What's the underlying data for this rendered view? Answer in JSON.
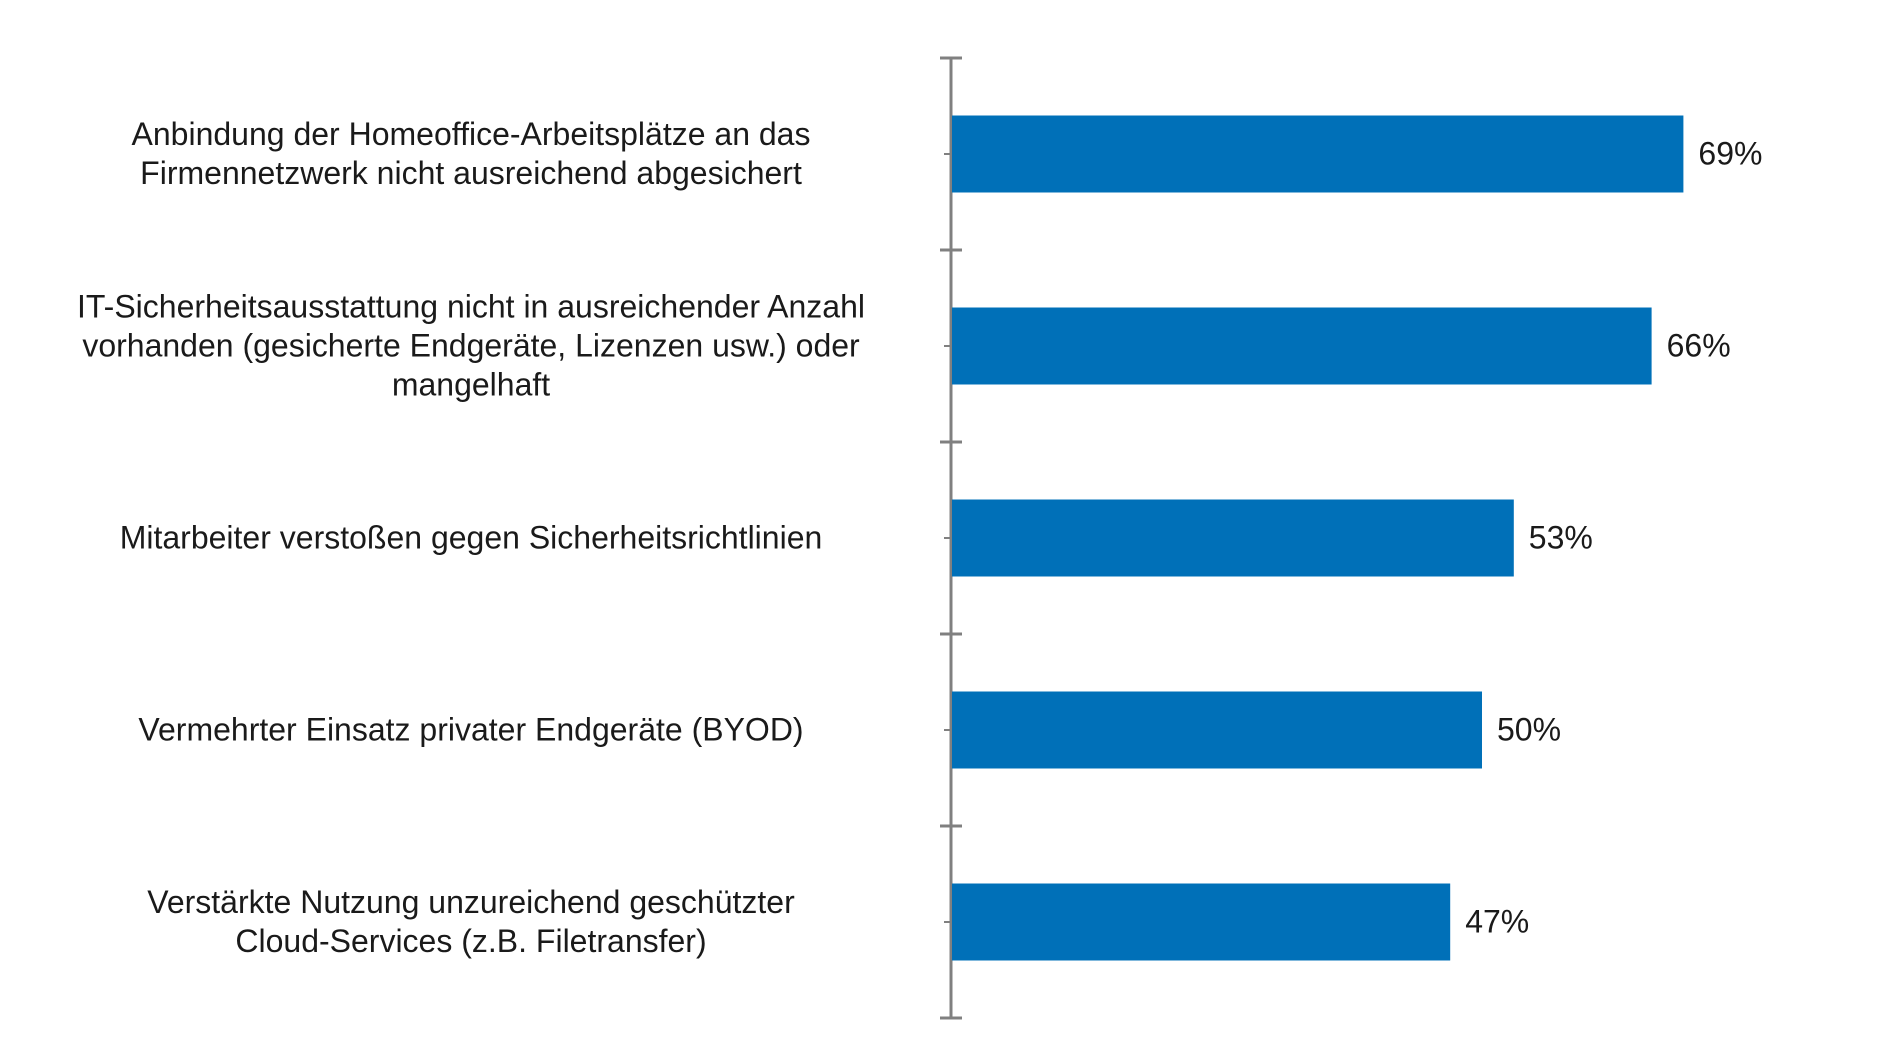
{
  "chart_data": {
    "type": "bar",
    "orientation": "horizontal",
    "categories": [
      "Anbindung der Homeoffice-Arbeitsplätze an das\nFirmennetzwerk nicht ausreichend abgesichert",
      "IT-Sicherheitsausstattung nicht in ausreichender Anzahl\nvorhanden (gesicherte Endgeräte, Lizenzen usw.) oder\nmangelhaft",
      "Mitarbeiter verstoßen gegen Sicherheitsrichtlinien",
      "Vermehrter Einsatz privater Endgeräte (BYOD)",
      "Verstärkte Nutzung unzureichend geschützter\nCloud-Services (z.B. Filetransfer)"
    ],
    "values": [
      69,
      66,
      53,
      50,
      47
    ],
    "value_labels": [
      "69%",
      "66%",
      "53%",
      "50%",
      "47%"
    ],
    "xlim": [
      0,
      100
    ],
    "grid": false,
    "legend": "none",
    "colors": {
      "bar": "#0070b8",
      "axis": "#808080",
      "text": "#1a1a1a"
    }
  }
}
